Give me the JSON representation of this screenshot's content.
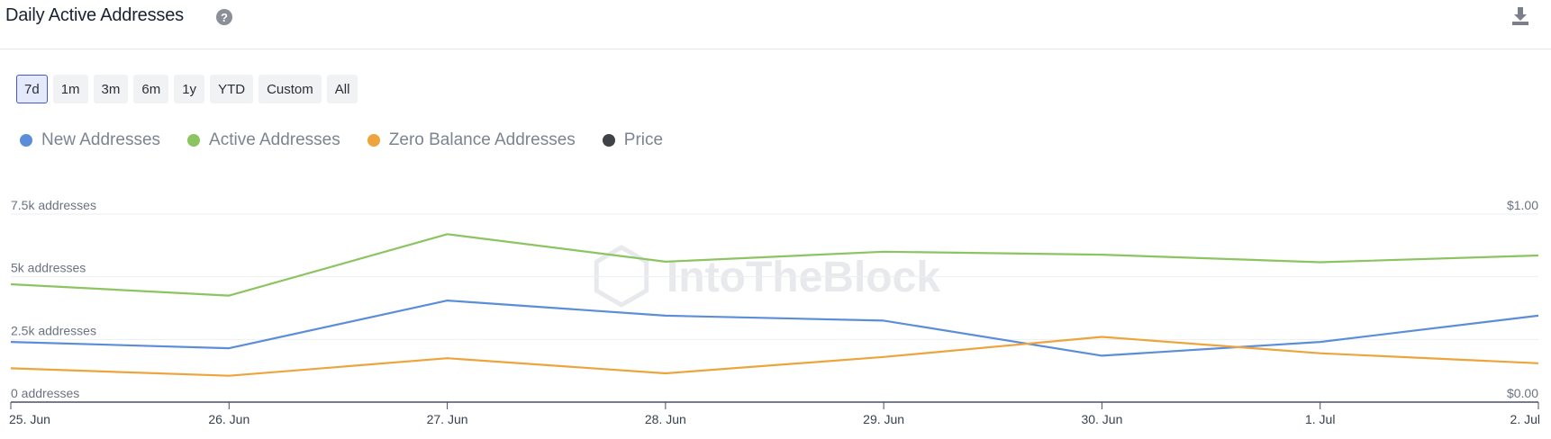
{
  "header": {
    "title": "Daily Active Addresses",
    "help_icon": "question-circle-icon",
    "download_icon": "download-icon"
  },
  "ranges": [
    {
      "label": "7d",
      "active": true
    },
    {
      "label": "1m",
      "active": false
    },
    {
      "label": "3m",
      "active": false
    },
    {
      "label": "6m",
      "active": false
    },
    {
      "label": "1y",
      "active": false
    },
    {
      "label": "YTD",
      "active": false
    },
    {
      "label": "Custom",
      "active": false
    },
    {
      "label": "All",
      "active": false
    }
  ],
  "legend": [
    {
      "label": "New Addresses",
      "color": "#5b8dd9"
    },
    {
      "label": "Active Addresses",
      "color": "#8cc461"
    },
    {
      "label": "Zero Balance Addresses",
      "color": "#eda43c"
    },
    {
      "label": "Price",
      "color": "#3f4247"
    }
  ],
  "watermark": "IntoTheBlock",
  "chart_data": {
    "type": "line",
    "x": [
      "25. Jun",
      "26. Jun",
      "27. Jun",
      "28. Jun",
      "29. Jun",
      "30. Jun",
      "1. Jul",
      "2. Jul"
    ],
    "series": [
      {
        "name": "New Addresses",
        "color": "#5b8dd9",
        "values": [
          2400,
          2150,
          4050,
          3450,
          3250,
          1850,
          2400,
          3450
        ]
      },
      {
        "name": "Active Addresses",
        "color": "#8cc461",
        "values": [
          4700,
          4250,
          6700,
          5600,
          6000,
          5880,
          5580,
          5850
        ]
      },
      {
        "name": "Zero Balance Addresses",
        "color": "#eda43c",
        "values": [
          1350,
          1050,
          1750,
          1150,
          1800,
          2600,
          1950,
          1550
        ]
      }
    ],
    "y_left": {
      "ticks": [
        "0 addresses",
        "2.5k addresses",
        "5k addresses",
        "7.5k addresses"
      ],
      "lim": [
        0,
        7500
      ]
    },
    "y_right": {
      "ticks": [
        "$0.00",
        "$1.00"
      ],
      "lim": [
        0,
        1
      ]
    },
    "grid": true
  }
}
